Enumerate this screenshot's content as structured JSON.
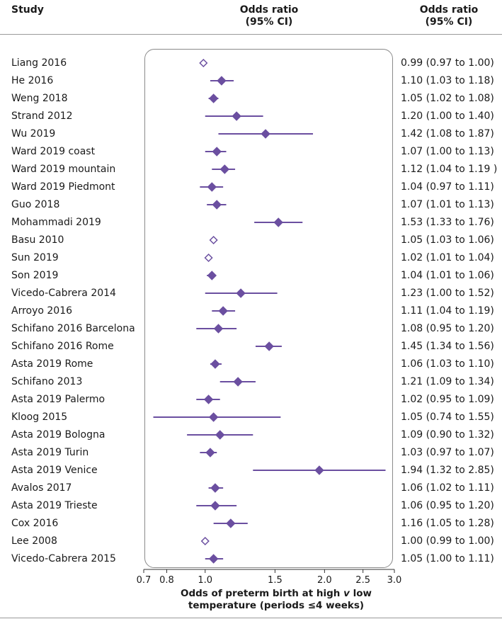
{
  "header": {
    "study_label": "Study",
    "center_line1": "Odds ratio",
    "center_line2": "(95% CI)",
    "right_line1": "Odds ratio",
    "right_line2": "(95% CI)"
  },
  "colors": {
    "marker": "#6b4fa0",
    "open_marker_fill": "#ffffff",
    "axis": "#333333"
  },
  "x_title_line1_a": "Odds of preterm birth at high ",
  "x_title_line1_v": "v",
  "x_title_line1_b": " low",
  "x_title_line2": "temperature (periods ≤4 weeks)",
  "chart_data": {
    "type": "forest",
    "xscale": "log",
    "xlim": [
      0.7,
      3.0
    ],
    "xticks": [
      0.7,
      0.8,
      1.0,
      1.5,
      2.0,
      2.5,
      3.0
    ],
    "xtick_labels": [
      "0.7",
      "0.8",
      "1.0",
      "1.5",
      "2.0",
      "2.5",
      "3.0"
    ],
    "studies": [
      {
        "name": "Liang 2016",
        "or": 0.99,
        "lo": 0.97,
        "hi": 1.0,
        "text": "0.99 (0.97 to 1.00)",
        "open": true
      },
      {
        "name": "He 2016",
        "or": 1.1,
        "lo": 1.03,
        "hi": 1.18,
        "text": "1.10 (1.03 to 1.18)",
        "open": false
      },
      {
        "name": "Weng 2018",
        "or": 1.05,
        "lo": 1.02,
        "hi": 1.08,
        "text": "1.05 (1.02 to 1.08)",
        "open": false
      },
      {
        "name": "Strand 2012",
        "or": 1.2,
        "lo": 1.0,
        "hi": 1.4,
        "text": "1.20 (1.00 to 1.40)",
        "open": false
      },
      {
        "name": "Wu 2019",
        "or": 1.42,
        "lo": 1.08,
        "hi": 1.87,
        "text": "1.42 (1.08 to 1.87)",
        "open": false
      },
      {
        "name": "Ward 2019 coast",
        "or": 1.07,
        "lo": 1.0,
        "hi": 1.13,
        "text": "1.07 (1.00 to 1.13)",
        "open": false
      },
      {
        "name": "Ward 2019 mountain",
        "or": 1.12,
        "lo": 1.04,
        "hi": 1.19,
        "text": "1.12 (1.04 to 1.19 )",
        "open": false
      },
      {
        "name": "Ward 2019 Piedmont",
        "or": 1.04,
        "lo": 0.97,
        "hi": 1.11,
        "text": "1.04 (0.97 to 1.11)",
        "open": false
      },
      {
        "name": "Guo 2018",
        "or": 1.07,
        "lo": 1.01,
        "hi": 1.13,
        "text": "1.07 (1.01 to 1.13)",
        "open": false
      },
      {
        "name": "Mohammadi 2019",
        "or": 1.53,
        "lo": 1.33,
        "hi": 1.76,
        "text": "1.53 (1.33 to 1.76)",
        "open": false
      },
      {
        "name": "Basu 2010",
        "or": 1.05,
        "lo": 1.03,
        "hi": 1.06,
        "text": "1.05 (1.03 to 1.06)",
        "open": true
      },
      {
        "name": "Sun 2019",
        "or": 1.02,
        "lo": 1.01,
        "hi": 1.04,
        "text": "1.02 (1.01 to 1.04)",
        "open": true
      },
      {
        "name": "Son 2019",
        "or": 1.04,
        "lo": 1.01,
        "hi": 1.06,
        "text": "1.04 (1.01 to 1.06)",
        "open": false
      },
      {
        "name": "Vicedo-Cabrera 2014",
        "or": 1.23,
        "lo": 1.0,
        "hi": 1.52,
        "text": "1.23 (1.00 to 1.52)",
        "open": false
      },
      {
        "name": "Arroyo 2016",
        "or": 1.11,
        "lo": 1.04,
        "hi": 1.19,
        "text": "1.11 (1.04 to 1.19)",
        "open": false
      },
      {
        "name": "Schifano 2016 Barcelona",
        "or": 1.08,
        "lo": 0.95,
        "hi": 1.2,
        "text": "1.08 (0.95 to 1.20)",
        "open": false
      },
      {
        "name": "Schifano 2016 Rome",
        "or": 1.45,
        "lo": 1.34,
        "hi": 1.56,
        "text": "1.45 (1.34 to 1.56)",
        "open": false
      },
      {
        "name": "Asta 2019 Rome",
        "or": 1.06,
        "lo": 1.03,
        "hi": 1.1,
        "text": "1.06 (1.03 to 1.10)",
        "open": false
      },
      {
        "name": "Schifano 2013",
        "or": 1.21,
        "lo": 1.09,
        "hi": 1.34,
        "text": "1.21 (1.09 to 1.34)",
        "open": false
      },
      {
        "name": "Asta 2019 Palermo",
        "or": 1.02,
        "lo": 0.95,
        "hi": 1.09,
        "text": "1.02 (0.95 to 1.09)",
        "open": false
      },
      {
        "name": "Kloog 2015",
        "or": 1.05,
        "lo": 0.74,
        "hi": 1.55,
        "text": "1.05 (0.74 to 1.55)",
        "open": false
      },
      {
        "name": "Asta 2019 Bologna",
        "or": 1.09,
        "lo": 0.9,
        "hi": 1.32,
        "text": "1.09 (0.90 to 1.32)",
        "open": false
      },
      {
        "name": "Asta 2019 Turin",
        "or": 1.03,
        "lo": 0.97,
        "hi": 1.07,
        "text": "1.03 (0.97 to 1.07)",
        "open": false
      },
      {
        "name": "Asta 2019 Venice",
        "or": 1.94,
        "lo": 1.32,
        "hi": 2.85,
        "text": "1.94 (1.32 to 2.85)",
        "open": false
      },
      {
        "name": "Avalos 2017",
        "or": 1.06,
        "lo": 1.02,
        "hi": 1.11,
        "text": "1.06 (1.02 to 1.11)",
        "open": false
      },
      {
        "name": "Asta 2019 Trieste",
        "or": 1.06,
        "lo": 0.95,
        "hi": 1.2,
        "text": "1.06 (0.95 to 1.20)",
        "open": false
      },
      {
        "name": "Cox 2016",
        "or": 1.16,
        "lo": 1.05,
        "hi": 1.28,
        "text": "1.16 (1.05 to 1.28)",
        "open": false
      },
      {
        "name": "Lee 2008",
        "or": 1.0,
        "lo": 0.99,
        "hi": 1.0,
        "text": "1.00 (0.99 to 1.00)",
        "open": true
      },
      {
        "name": "Vicedo-Cabrera 2015",
        "or": 1.05,
        "lo": 1.0,
        "hi": 1.11,
        "text": "1.05 (1.00 to 1.11)",
        "open": false
      }
    ]
  }
}
